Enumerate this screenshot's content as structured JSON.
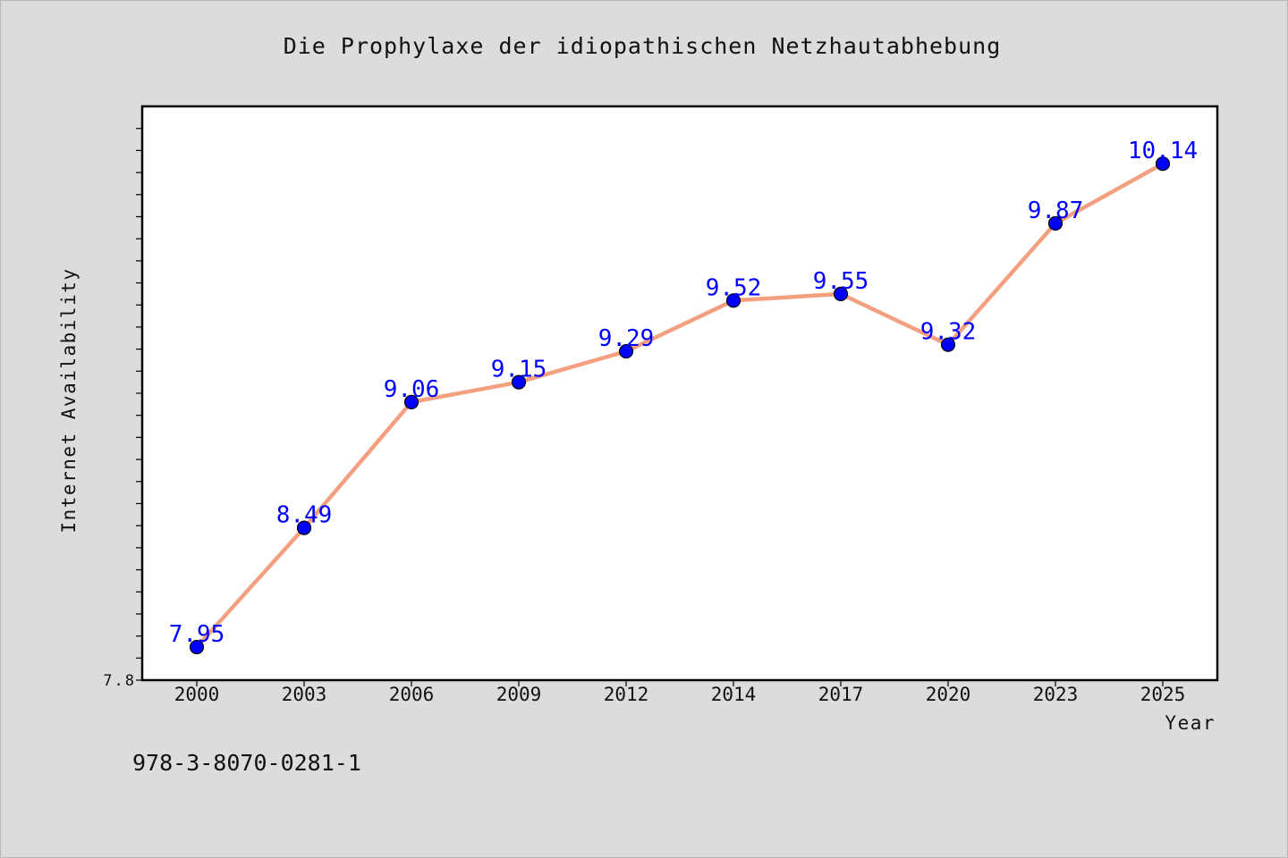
{
  "chart_data": {
    "type": "line",
    "title": "Die Prophylaxe der idiopathischen Netzhautabhebung",
    "xlabel": "Year",
    "ylabel": "Internet Availability",
    "categories": [
      "2000",
      "2003",
      "2006",
      "2009",
      "2012",
      "2014",
      "2017",
      "2020",
      "2023",
      "2025"
    ],
    "values": [
      7.95,
      8.49,
      9.06,
      9.15,
      9.29,
      9.52,
      9.55,
      9.32,
      9.87,
      10.14
    ],
    "data_labels": [
      "7.95",
      "8.49",
      "9.06",
      "9.15",
      "9.29",
      "9.52",
      "9.55",
      "9.32",
      "9.87",
      "10.14"
    ],
    "ylim": [
      7.8,
      10.4
    ],
    "y_tick_labels": [
      "7.8"
    ],
    "grid": false,
    "line_color": "#f4a080",
    "marker_color": "#0000ff",
    "label_color": "#0000ff"
  },
  "footer": {
    "isbn": "978-3-8070-0281-1"
  }
}
